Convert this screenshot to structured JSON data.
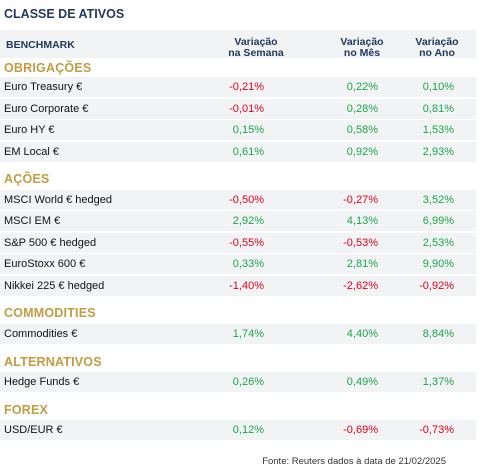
{
  "title": "CLASSE DE ATIVOS",
  "header": {
    "benchmark": "BENCHMARK",
    "col1": [
      "Variação",
      "na Semana"
    ],
    "col2": [
      "Variação",
      "no Mês"
    ],
    "col3": [
      "Variação",
      "no Ano"
    ]
  },
  "sections": [
    {
      "name": "OBRIGAÇÕES",
      "rows": [
        {
          "name": "Euro Treasury €",
          "week": "-0,21%",
          "month": "0,22%",
          "year": "0,10%"
        },
        {
          "name": "Euro Corporate €",
          "week": "-0,01%",
          "month": "0,28%",
          "year": "0,81%"
        },
        {
          "name": "Euro HY €",
          "week": "0,15%",
          "month": "0,58%",
          "year": "1,53%"
        },
        {
          "name": "EM Local €",
          "week": "0,61%",
          "month": "0,92%",
          "year": "2,93%"
        }
      ]
    },
    {
      "name": "AÇÕES",
      "rows": [
        {
          "name": "MSCI World € hedged",
          "week": "-0,50%",
          "month": "-0,27%",
          "year": "3,52%"
        },
        {
          "name": "MSCI EM €",
          "week": "2,92%",
          "month": "4,13%",
          "year": "6,99%"
        },
        {
          "name": "S&P 500 € hedged",
          "week": "-0,55%",
          "month": "-0,53%",
          "year": "2,53%"
        },
        {
          "name": "EuroStoxx 600 €",
          "week": "0,33%",
          "month": "2,81%",
          "year": "9,90%"
        },
        {
          "name": "Nikkei 225 € hedged",
          "week": "-1,40%",
          "month": "-2,62%",
          "year": "-0,92%"
        }
      ]
    },
    {
      "name": "COMMODITIES",
      "rows": [
        {
          "name": "Commodities €",
          "week": "1,74%",
          "month": "4,40%",
          "year": "8,84%"
        }
      ]
    },
    {
      "name": "ALTERNATIVOS",
      "rows": [
        {
          "name": "Hedge Funds €",
          "week": "0,26%",
          "month": "0,49%",
          "year": "1,37%"
        }
      ]
    },
    {
      "name": "FOREX",
      "rows": [
        {
          "name": "USD/EUR €",
          "week": "0,12%",
          "month": "-0,69%",
          "year": "-0,73%"
        }
      ]
    }
  ],
  "source": "Fonte: Reuters dados à data de 21/02/2025",
  "colors": {
    "positive": "#1aa74a",
    "negative": "#e3001b",
    "section": "#c39b42",
    "header": "#23395d"
  }
}
